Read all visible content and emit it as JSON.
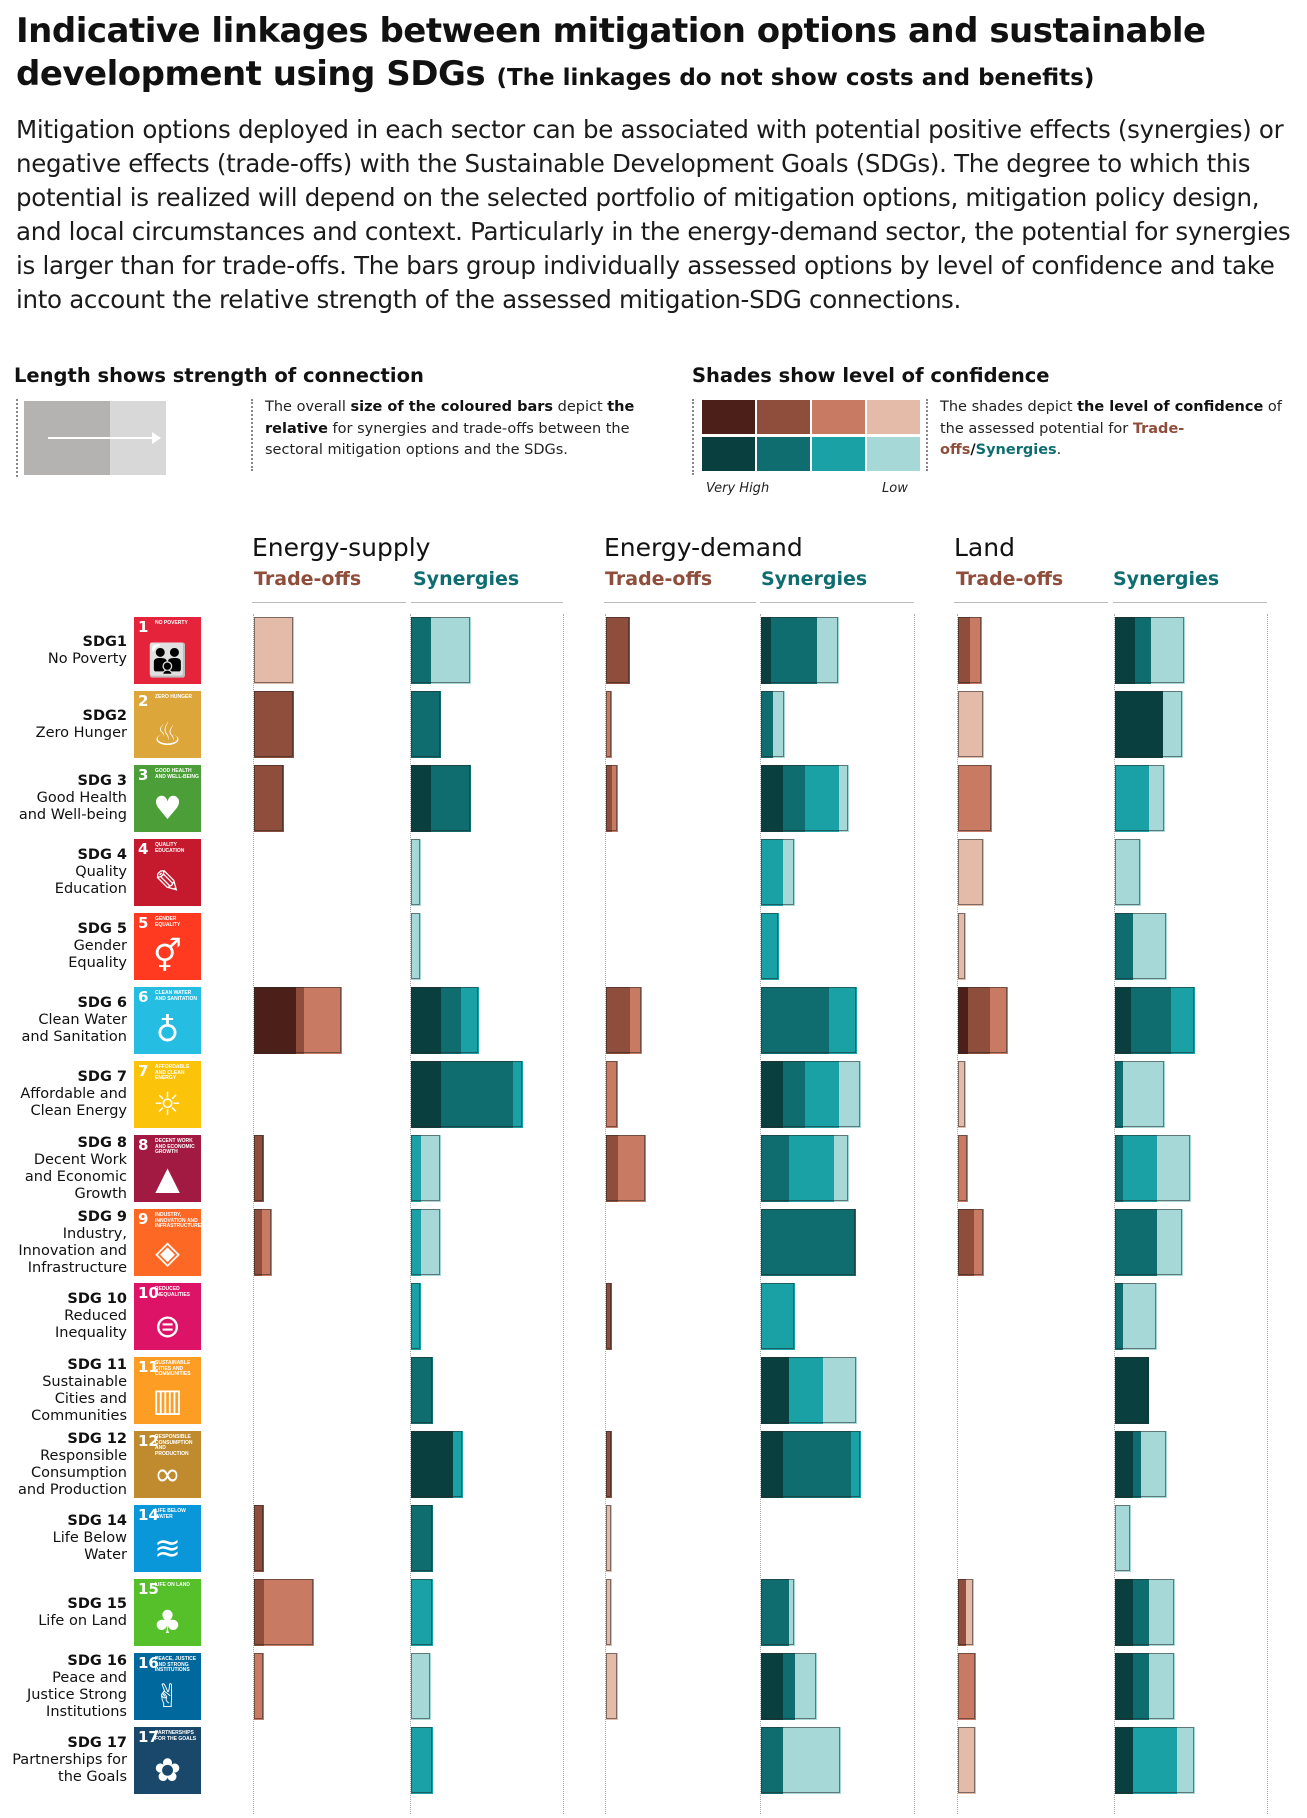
{
  "header": {
    "title": "Indicative linkages between mitigation options and sustainable development using SDGs",
    "title_note": "(The linkages do not show costs and benefits)",
    "intro": "Mitigation options deployed in each sector can be associated with potential positive effects (synergies) or negative effects (trade-offs) with the Sustainable Development Goals (SDGs). The degree to which this potential is realized will depend on the selected portfolio of mitigation options, mitigation policy design, and local circumstances and context. Particularly in the energy-demand sector, the potential for synergies is larger than for trade-offs. The bars group individually assessed options by level of confidence and take into account the relative strength of the assessed mitigation-SDG connections."
  },
  "legend": {
    "length_title": "Length shows strength of connection",
    "length_text": {
      "t1": "The overall ",
      "b1": "size of the coloured bars",
      "t2": " depict ",
      "b2": "the relative",
      "t3": " for synergies and trade-offs between the sectoral mitigation options and the SDGs."
    },
    "shade_title": "Shades show level of confidence",
    "shade_text": {
      "t1": "The shades depict ",
      "b1": "the level of confidence",
      "t2": " of the assessed potential for ",
      "tradeoffs": "Trade-offs",
      "slash": "/",
      "synergies": "Synergies",
      "end": "."
    },
    "very_high": "Very High",
    "low": "Low"
  },
  "colors": {
    "tradeoff_shades": [
      "#4d1f19",
      "#8f4d3b",
      "#c97a62",
      "#e3bba8"
    ],
    "synergy_shades": [
      "#0a3f3f",
      "#0f6d70",
      "#1aa1a6",
      "#a6d8d8"
    ],
    "tradeoff_label": "#8f4d3b",
    "synergy_label": "#0f6d70"
  },
  "chart_data": {
    "type": "bar",
    "title": "Indicative linkages between mitigation options and sustainable development using SDGs",
    "value_unit": "relative strength of connection (arbitrary units); each bar split into confidence shades [very high, high, medium, low]",
    "categories": [
      "SDG1",
      "SDG2",
      "SDG 3",
      "SDG 4",
      "SDG 5",
      "SDG 6",
      "SDG 7",
      "SDG 8",
      "SDG 9",
      "SDG 10",
      "SDG 11",
      "SDG 12",
      "SDG 14",
      "SDG 15",
      "SDG 16",
      "SDG 17"
    ],
    "category_names": [
      "No Poverty",
      "Zero Hunger",
      "Good Health and Well-being",
      "Quality Education",
      "Gender Equality",
      "Clean Water and Sanitation",
      "Affordable and Clean Energy",
      "Decent Work and Economic Growth",
      "Industry, Innovation and Infrastructure",
      "Reduced Inequality",
      "Sustainable Cities and Communities",
      "Responsible Consumption and Production",
      "Life Below Water",
      "Life on Land",
      "Peace and Justice Strong Institutions",
      "Partnerships for the Goals"
    ],
    "sectors": [
      {
        "name": "Energy-supply",
        "tradeoffs_label": "Trade-offs",
        "synergies_label": "Synergies",
        "tradeoffs": [
          [
            0,
            0,
            0,
            40
          ],
          [
            0,
            40,
            0,
            0
          ],
          [
            0,
            30,
            0,
            0
          ],
          [
            0,
            0,
            0,
            0
          ],
          [
            0,
            0,
            0,
            0
          ],
          [
            42,
            8,
            38,
            0
          ],
          [
            0,
            0,
            0,
            0
          ],
          [
            0,
            10,
            0,
            0
          ],
          [
            0,
            8,
            10,
            0
          ],
          [
            0,
            0,
            0,
            0
          ],
          [
            0,
            0,
            0,
            0
          ],
          [
            0,
            0,
            0,
            0
          ],
          [
            0,
            10,
            0,
            0
          ],
          [
            0,
            10,
            50,
            0
          ],
          [
            0,
            0,
            10,
            0
          ],
          [
            0,
            0,
            0,
            0
          ]
        ],
        "synergies": [
          [
            0,
            20,
            0,
            40
          ],
          [
            0,
            30,
            0,
            0
          ],
          [
            20,
            40,
            0,
            0
          ],
          [
            0,
            0,
            0,
            10
          ],
          [
            0,
            0,
            0,
            10
          ],
          [
            30,
            20,
            18,
            0
          ],
          [
            30,
            72,
            10,
            0
          ],
          [
            0,
            0,
            10,
            20
          ],
          [
            0,
            0,
            10,
            20
          ],
          [
            0,
            0,
            10,
            0
          ],
          [
            0,
            22,
            0,
            0
          ],
          [
            42,
            0,
            10,
            0
          ],
          [
            0,
            22,
            0,
            0
          ],
          [
            0,
            0,
            22,
            0
          ],
          [
            0,
            0,
            0,
            20
          ],
          [
            0,
            0,
            22,
            0
          ]
        ]
      },
      {
        "name": "Energy-demand",
        "tradeoffs_label": "Trade-offs",
        "synergies_label": "Synergies",
        "tradeoffs": [
          [
            0,
            24,
            0,
            0
          ],
          [
            0,
            0,
            6,
            0
          ],
          [
            0,
            6,
            6,
            0
          ],
          [
            0,
            0,
            0,
            0
          ],
          [
            0,
            0,
            0,
            0
          ],
          [
            0,
            24,
            12,
            0
          ],
          [
            0,
            0,
            12,
            0
          ],
          [
            0,
            12,
            28,
            0
          ],
          [
            0,
            0,
            0,
            0
          ],
          [
            0,
            6,
            0,
            0
          ],
          [
            0,
            0,
            0,
            0
          ],
          [
            0,
            6,
            0,
            0
          ],
          [
            0,
            0,
            0,
            6
          ],
          [
            0,
            0,
            0,
            6
          ],
          [
            0,
            0,
            0,
            12
          ],
          [
            0,
            0,
            0,
            0
          ]
        ],
        "synergies": [
          [
            10,
            46,
            0,
            22
          ],
          [
            0,
            12,
            0,
            12
          ],
          [
            22,
            22,
            34,
            10
          ],
          [
            0,
            0,
            22,
            12
          ],
          [
            0,
            0,
            18,
            0
          ],
          [
            0,
            68,
            28,
            0
          ],
          [
            22,
            22,
            34,
            22
          ],
          [
            0,
            28,
            45,
            15
          ],
          [
            0,
            95,
            0,
            0
          ],
          [
            0,
            0,
            34,
            0
          ],
          [
            28,
            0,
            34,
            34
          ],
          [
            22,
            68,
            10,
            0
          ],
          [
            0,
            0,
            0,
            0
          ],
          [
            0,
            28,
            0,
            6
          ],
          [
            22,
            12,
            0,
            22
          ],
          [
            0,
            22,
            0,
            58
          ]
        ]
      },
      {
        "name": "Land",
        "tradeoffs_label": "Trade-offs",
        "synergies_label": "Synergies",
        "tradeoffs": [
          [
            0,
            12,
            12,
            0
          ],
          [
            0,
            0,
            0,
            26
          ],
          [
            0,
            0,
            34,
            0
          ],
          [
            0,
            0,
            0,
            26
          ],
          [
            0,
            0,
            0,
            8
          ],
          [
            10,
            22,
            18,
            0
          ],
          [
            0,
            0,
            0,
            8
          ],
          [
            0,
            0,
            10,
            0
          ],
          [
            0,
            16,
            10,
            0
          ],
          [
            0,
            0,
            0,
            0
          ],
          [
            0,
            0,
            0,
            0
          ],
          [
            0,
            0,
            0,
            0
          ],
          [
            0,
            0,
            0,
            0
          ],
          [
            0,
            8,
            0,
            8
          ],
          [
            0,
            0,
            18,
            0
          ],
          [
            0,
            0,
            0,
            18
          ]
        ],
        "synergies": [
          [
            20,
            16,
            0,
            34
          ],
          [
            48,
            0,
            0,
            20
          ],
          [
            0,
            0,
            34,
            16
          ],
          [
            0,
            0,
            0,
            26
          ],
          [
            0,
            18,
            0,
            34
          ],
          [
            16,
            40,
            24,
            0
          ],
          [
            0,
            8,
            0,
            42
          ],
          [
            0,
            8,
            34,
            34
          ],
          [
            0,
            42,
            0,
            26
          ],
          [
            0,
            8,
            0,
            34
          ],
          [
            34,
            0,
            0,
            0
          ],
          [
            18,
            8,
            0,
            26
          ],
          [
            0,
            0,
            0,
            16
          ],
          [
            18,
            16,
            0,
            26
          ],
          [
            18,
            16,
            0,
            26
          ],
          [
            18,
            0,
            44,
            18
          ]
        ]
      }
    ]
  },
  "rows": [
    {
      "code": "SDG1",
      "lines": [
        "No Poverty"
      ],
      "icon_num": "1",
      "icon_caption": "No poverty",
      "icon_color": "#e5243b",
      "glyph": "👪",
      "icon_name": "family-icon"
    },
    {
      "code": "SDG2",
      "lines": [
        "Zero Hunger"
      ],
      "icon_num": "2",
      "icon_caption": "Zero hunger",
      "icon_color": "#dda63a",
      "glyph": "♨",
      "icon_name": "bowl-icon"
    },
    {
      "code": "SDG 3",
      "lines": [
        "Good Health",
        "and Well-being"
      ],
      "icon_num": "3",
      "icon_caption": "Good health and well-being",
      "icon_color": "#4c9f38",
      "glyph": "♥",
      "icon_name": "heartbeat-icon"
    },
    {
      "code": "SDG 4",
      "lines": [
        "Quality",
        "Education"
      ],
      "icon_num": "4",
      "icon_caption": "Quality education",
      "icon_color": "#c5192d",
      "glyph": "✎",
      "icon_name": "book-icon"
    },
    {
      "code": "SDG 5",
      "lines": [
        "Gender",
        "Equality"
      ],
      "icon_num": "5",
      "icon_caption": "Gender equality",
      "icon_color": "#ff3a21",
      "glyph": "⚥",
      "icon_name": "gender-icon"
    },
    {
      "code": "SDG 6",
      "lines": [
        "Clean Water",
        "and Sanitation"
      ],
      "icon_num": "6",
      "icon_caption": "Clean water and sanitation",
      "icon_color": "#26bde2",
      "glyph": "♁",
      "icon_name": "water-glass-icon"
    },
    {
      "code": "SDG 7",
      "lines": [
        "Affordable and",
        "Clean Energy"
      ],
      "icon_num": "7",
      "icon_caption": "Affordable and clean energy",
      "icon_color": "#fcc30b",
      "glyph": "☼",
      "icon_name": "sun-icon"
    },
    {
      "code": "SDG 8",
      "lines": [
        "Decent Work",
        "and Economic",
        "Growth"
      ],
      "icon_num": "8",
      "icon_caption": "Decent work and economic growth",
      "icon_color": "#a21942",
      "glyph": "▲",
      "icon_name": "growth-chart-icon"
    },
    {
      "code": "SDG 9",
      "lines": [
        "Industry,",
        "Innovation and",
        "Infrastructure"
      ],
      "icon_num": "9",
      "icon_caption": "Industry, innovation and infrastructure",
      "icon_color": "#fd6925",
      "glyph": "◈",
      "icon_name": "cubes-icon"
    },
    {
      "code": "SDG 10",
      "lines": [
        "Reduced",
        "Inequality"
      ],
      "icon_num": "10",
      "icon_caption": "Reduced inequalities",
      "icon_color": "#dd1367",
      "glyph": "⊜",
      "icon_name": "equal-icon"
    },
    {
      "code": "SDG 11",
      "lines": [
        "Sustainable",
        "Cities and",
        "Communities"
      ],
      "icon_num": "11",
      "icon_caption": "Sustainable cities and communities",
      "icon_color": "#fd9d24",
      "glyph": "▥",
      "icon_name": "city-icon"
    },
    {
      "code": "SDG 12",
      "lines": [
        "Responsible",
        "Consumption",
        "and Production"
      ],
      "icon_num": "12",
      "icon_caption": "Responsible consumption and production",
      "icon_color": "#bf8b2e",
      "glyph": "∞",
      "icon_name": "infinity-icon"
    },
    {
      "code": "SDG 14",
      "lines": [
        "Life Below",
        "Water"
      ],
      "icon_num": "14",
      "icon_caption": "Life below water",
      "icon_color": "#0a97d9",
      "glyph": "≋",
      "icon_name": "fish-icon"
    },
    {
      "code": "SDG 15",
      "lines": [
        "Life on Land"
      ],
      "icon_num": "15",
      "icon_caption": "Life on land",
      "icon_color": "#56c02b",
      "glyph": "♣",
      "icon_name": "tree-icon"
    },
    {
      "code": "SDG 16",
      "lines": [
        "Peace and",
        "Justice Strong",
        "Institutions"
      ],
      "icon_num": "16",
      "icon_caption": "Peace, justice and strong institutions",
      "icon_color": "#00689d",
      "glyph": "✌",
      "icon_name": "dove-icon"
    },
    {
      "code": "SDG 17",
      "lines": [
        "Partnerships for",
        "the Goals"
      ],
      "icon_num": "17",
      "icon_caption": "Partnerships for the goals",
      "icon_color": "#19486a",
      "glyph": "✿",
      "icon_name": "partnership-rings-icon"
    }
  ]
}
